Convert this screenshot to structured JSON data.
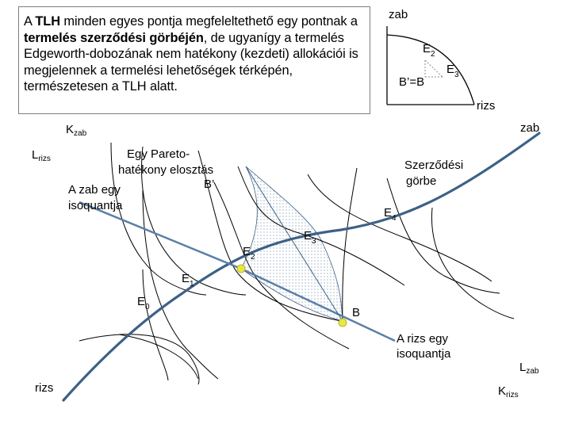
{
  "colors": {
    "contract_curve": "#3d6186",
    "isoquant": "#000000",
    "budget_line": "#5a7fa8",
    "point_marker": "#e8e840"
  },
  "intro": {
    "p1": "A ",
    "tlh": "TLH",
    "p2": " minden egyes pontja megfeleltethető egy pontnak a ",
    "bold": "termelés szerződési görbéjén",
    "p3": ", de ugyanígy a termelés Edgeworth-dobozának nem hatékony (kezdeti) allokációi is megjelennek a termelési lehetőségek térképén, természetesen a TLH alatt."
  },
  "ppf_inset": {
    "axis_y_label": "zab",
    "axis_x_label": "rizs",
    "point_e2": {
      "main": "E",
      "sub": "2"
    },
    "point_e3": {
      "main": "E",
      "sub": "3"
    },
    "point_bb": "B’=B"
  },
  "box": {
    "k_zab": {
      "main": "K",
      "sub": "zab"
    },
    "l_rizs": {
      "main": "L",
      "sub": "rizs"
    },
    "zab_corner": "zab",
    "rizs_corner": "rizs",
    "l_zab": {
      "main": "L",
      "sub": "zab"
    },
    "k_rizs": {
      "main": "K",
      "sub": "rizs"
    }
  },
  "annotations": {
    "pareto_line1": "Egy Pareto-",
    "pareto_line2": "hatékony elosztás",
    "b_prime": "B’",
    "zab_isoquant_line1": "A zab egy",
    "zab_isoquant_line2": "isoquantja",
    "contract_line1": "Szerződési",
    "contract_line2": "görbe",
    "e4": {
      "main": "E",
      "sub": "4"
    },
    "e3": {
      "main": "E",
      "sub": "3"
    },
    "e2": {
      "main": "E",
      "sub": "2"
    },
    "e1": {
      "main": "E",
      "sub": "1"
    },
    "e0": {
      "main": "E",
      "sub": "0"
    },
    "b": "B",
    "rizs_isoquant_line1": "A rizs egy",
    "rizs_isoquant_line2": "isoquantja"
  }
}
